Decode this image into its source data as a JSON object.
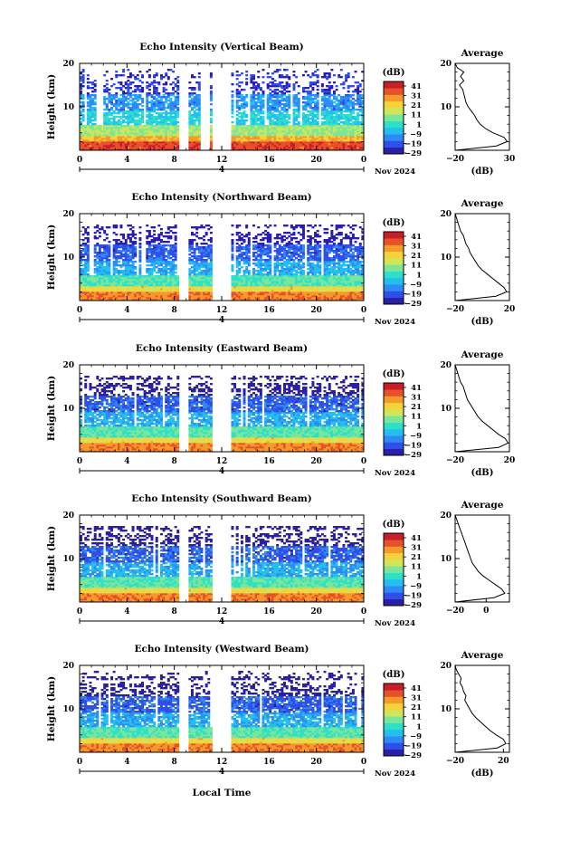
{
  "global": {
    "date_label": "Nov 2024",
    "day_label": "4",
    "x_axis_title": "Local Time"
  },
  "colorbar": {
    "unit": "(dB)",
    "ticks": [
      "41",
      "31",
      "21",
      "11",
      "1",
      "−9",
      "−19",
      "−29"
    ],
    "colors": [
      "#2a1fa8",
      "#2f4fe8",
      "#2e8af5",
      "#22c0ee",
      "#2fe0c8",
      "#7ae69a",
      "#cfe65a",
      "#f5d23a",
      "#f59a2a",
      "#e8502a",
      "#c81e2a"
    ]
  },
  "chart_data": [
    {
      "type": "heatmap",
      "title": "Echo Intensity (Vertical Beam)",
      "ylabel": "Height (km)",
      "xlabel": "",
      "x_ticks": [
        "0",
        "4",
        "8",
        "12",
        "16",
        "20",
        "0"
      ],
      "y_ticks": [
        "20",
        "10"
      ],
      "ylim": [
        0,
        20
      ],
      "xlim": [
        0,
        24
      ],
      "data_gaps_hours": [
        [
          8.5,
          9.1
        ],
        [
          10.2,
          10.9
        ],
        [
          11.3,
          12.8
        ]
      ],
      "echo_top_km": 18,
      "profile": {
        "title": "Average",
        "xlabel": "(dB)",
        "x_ticks": [
          "−20",
          "30"
        ],
        "y_ticks": [
          "20",
          "10"
        ],
        "xlim": [
          -20,
          30
        ],
        "height_km": [
          0,
          1,
          2,
          3,
          4,
          5,
          6,
          7,
          8,
          9,
          10,
          11,
          12,
          13,
          14,
          15,
          16,
          17,
          18,
          19,
          20
        ],
        "values_db": [
          -20,
          18,
          28,
          25,
          15,
          8,
          3,
          0,
          -2,
          -5,
          -8,
          -10,
          -11,
          -12,
          -13,
          -16,
          -12,
          -15,
          -12,
          -18,
          -20
        ]
      }
    },
    {
      "type": "heatmap",
      "title": "Echo Intensity (Northward Beam)",
      "ylabel": "Height (km)",
      "xlabel": "",
      "x_ticks": [
        "0",
        "4",
        "8",
        "12",
        "16",
        "20",
        "0"
      ],
      "y_ticks": [
        "20",
        "10"
      ],
      "ylim": [
        0,
        20
      ],
      "xlim": [
        0,
        24
      ],
      "data_gaps_hours": [
        [
          8.5,
          9.1
        ],
        [
          11.3,
          12.8
        ]
      ],
      "echo_top_km": 17,
      "profile": {
        "title": "Average",
        "xlabel": "(dB)",
        "x_ticks": [
          "−20",
          "20"
        ],
        "y_ticks": [
          "20",
          "10"
        ],
        "xlim": [
          -20,
          20
        ],
        "height_km": [
          0,
          1,
          2,
          3,
          4,
          5,
          6,
          7,
          8,
          9,
          10,
          11,
          12,
          13,
          14,
          15,
          16,
          17,
          18,
          19,
          20
        ],
        "values_db": [
          -20,
          10,
          18,
          16,
          12,
          8,
          4,
          0,
          -3,
          -5,
          -7,
          -9,
          -10,
          -12,
          -13,
          -14,
          -16,
          -17,
          -18,
          -19,
          -20
        ]
      }
    },
    {
      "type": "heatmap",
      "title": "Echo Intensity (Eastward Beam)",
      "ylabel": "Height (km)",
      "xlabel": "",
      "x_ticks": [
        "0",
        "4",
        "8",
        "12",
        "16",
        "20",
        "0"
      ],
      "y_ticks": [
        "20",
        "10"
      ],
      "ylim": [
        0,
        20
      ],
      "xlim": [
        0,
        24
      ],
      "data_gaps_hours": [
        [
          8.5,
          9.1
        ],
        [
          11.3,
          12.8
        ]
      ],
      "echo_top_km": 17,
      "profile": {
        "title": "Average",
        "xlabel": "(dB)",
        "x_ticks": [
          "−20",
          "20"
        ],
        "y_ticks": [
          "20",
          "10"
        ],
        "xlim": [
          -20,
          20
        ],
        "height_km": [
          0,
          1,
          2,
          3,
          4,
          5,
          6,
          7,
          8,
          9,
          10,
          11,
          12,
          13,
          14,
          15,
          16,
          17,
          18,
          19,
          20
        ],
        "values_db": [
          -20,
          12,
          19,
          17,
          12,
          8,
          4,
          0,
          -3,
          -5,
          -7,
          -9,
          -11,
          -12,
          -13,
          -14,
          -16,
          -17,
          -18,
          -19,
          -20
        ]
      }
    },
    {
      "type": "heatmap",
      "title": "Echo Intensity (Southward Beam)",
      "ylabel": "Height (km)",
      "xlabel": "",
      "x_ticks": [
        "0",
        "4",
        "8",
        "12",
        "16",
        "20",
        "0"
      ],
      "y_ticks": [
        "20",
        "10"
      ],
      "ylim": [
        0,
        20
      ],
      "xlim": [
        0,
        24
      ],
      "data_gaps_hours": [
        [
          8.5,
          9.1
        ],
        [
          11.3,
          12.8
        ]
      ],
      "echo_top_km": 17,
      "profile": {
        "title": "Average",
        "xlabel": "",
        "x_ticks": [
          "−20",
          "0"
        ],
        "y_ticks": [
          "20",
          "10"
        ],
        "xlim": [
          -20,
          15
        ],
        "height_km": [
          0,
          1,
          2,
          3,
          4,
          5,
          6,
          7,
          8,
          9,
          10,
          11,
          12,
          13,
          14,
          15,
          16,
          17,
          18,
          19,
          20
        ],
        "values_db": [
          -20,
          5,
          12,
          10,
          6,
          2,
          -2,
          -5,
          -7,
          -9,
          -10,
          -11,
          -12,
          -13,
          -14,
          -15,
          -16,
          -17,
          -18,
          -19,
          -20
        ]
      }
    },
    {
      "type": "heatmap",
      "title": "Echo Intensity (Westward Beam)",
      "ylabel": "Height (km)",
      "xlabel": "",
      "x_ticks": [
        "0",
        "4",
        "8",
        "12",
        "16",
        "20",
        "0"
      ],
      "y_ticks": [
        "20",
        "10"
      ],
      "ylim": [
        0,
        20
      ],
      "xlim": [
        0,
        24
      ],
      "data_gaps_hours": [
        [
          8.5,
          9.1
        ],
        [
          11.3,
          12.8
        ]
      ],
      "echo_top_km": 18,
      "profile": {
        "title": "Average",
        "xlabel": "(dB)",
        "x_ticks": [
          "−20",
          "20"
        ],
        "y_ticks": [
          "20",
          "10"
        ],
        "xlim": [
          -20,
          25
        ],
        "height_km": [
          0,
          1,
          2,
          3,
          4,
          5,
          6,
          7,
          8,
          9,
          10,
          11,
          12,
          13,
          14,
          15,
          16,
          17,
          18,
          19,
          20
        ],
        "values_db": [
          -20,
          15,
          22,
          20,
          14,
          9,
          5,
          1,
          -3,
          -6,
          -8,
          -10,
          -12,
          -11,
          -13,
          -14,
          -16,
          -15,
          -17,
          -19,
          -20
        ]
      }
    }
  ]
}
